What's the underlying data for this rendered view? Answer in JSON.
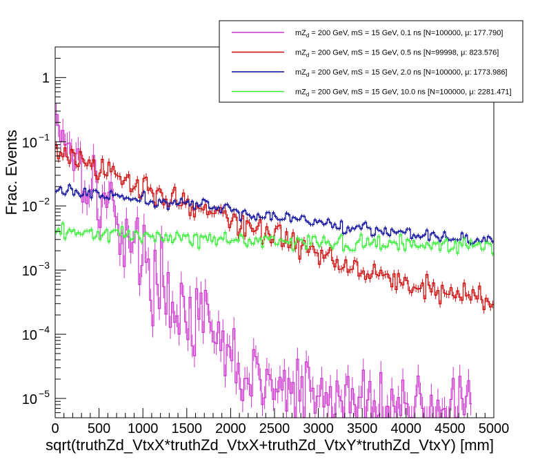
{
  "chart_data": {
    "type": "line",
    "style": "step-histogram",
    "title": "",
    "xlabel": "sqrt(truthZd_VtxX*truthZd_VtxX+truthZd_VtxY*truthZd_VtxY) [mm]",
    "ylabel": "Frac. Events",
    "xlim": [
      0,
      5000
    ],
    "ylim": [
      5e-06,
      3
    ],
    "yscale": "log",
    "x_ticks": [
      0,
      500,
      1000,
      1500,
      2000,
      2500,
      3000,
      3500,
      4000,
      4500,
      5000
    ],
    "x_tick_labels": [
      "0",
      "500",
      "1000",
      "1500",
      "2000",
      "2500",
      "3000",
      "3500",
      "4000",
      "4500",
      "5000"
    ],
    "y_tick_labels": [
      {
        "value": 1,
        "mantissa": "1",
        "exponent": ""
      },
      {
        "value": 0.1,
        "mantissa": "10",
        "exponent": "−1"
      },
      {
        "value": 0.01,
        "mantissa": "10",
        "exponent": "−2"
      },
      {
        "value": 0.001,
        "mantissa": "10",
        "exponent": "−3"
      },
      {
        "value": 0.0001,
        "mantissa": "10",
        "exponent": "−4"
      },
      {
        "value": 1e-05,
        "mantissa": "10",
        "exponent": "−5"
      }
    ],
    "legend_position": "top-right",
    "bin_width": 25,
    "series": [
      {
        "name": "mZd = 200 GeV, mS = 15 GeV, 0.1 ns [N=100000, μ: 177.790]",
        "legend_pre": "mZ",
        "legend_sub": "d",
        "legend_post": " = 200 GeV, mS = 15 GeV, 0.1 ns [N=100000, μ: 177.790]",
        "color": "#cc33cc",
        "anchors": [
          [
            0,
            0.28
          ],
          [
            100,
            0.15
          ],
          [
            250,
            0.06
          ],
          [
            400,
            0.025
          ],
          [
            600,
            0.01
          ],
          [
            800,
            0.004
          ],
          [
            1000,
            0.0015
          ],
          [
            1200,
            0.0006
          ],
          [
            1400,
            0.00028
          ],
          [
            1600,
            0.00016
          ],
          [
            1800,
            9e-05
          ],
          [
            2000,
            4e-05
          ],
          [
            2200,
            2e-05
          ],
          [
            2500,
            1.4e-05
          ],
          [
            3000,
            1e-05
          ],
          [
            3500,
            8e-06
          ],
          [
            4000,
            7e-06
          ],
          [
            4700,
            6e-06
          ]
        ],
        "noise": 0.3,
        "cutoff": 4750
      },
      {
        "name": "mZd = 200 GeV, mS = 15 GeV, 0.5 ns [N=99998, μ: 823.576]",
        "legend_pre": "mZ",
        "legend_sub": "d",
        "legend_post": " = 200 GeV, mS = 15 GeV, 0.5 ns [N=99998, μ: 823.576]",
        "color": "#cc0000",
        "anchors": [
          [
            0,
            0.075
          ],
          [
            500,
            0.035
          ],
          [
            1000,
            0.02
          ],
          [
            1500,
            0.011
          ],
          [
            2000,
            0.006
          ],
          [
            2500,
            0.0035
          ],
          [
            3000,
            0.0018
          ],
          [
            3500,
            0.0011
          ],
          [
            4000,
            0.0006
          ],
          [
            4500,
            0.00045
          ],
          [
            5000,
            0.00032
          ]
        ],
        "noise": 0.1,
        "cutoff": 5000
      },
      {
        "name": "mZd = 200 GeV, mS = 15 GeV, 2.0 ns [N=100000, μ: 1773.986]",
        "legend_pre": "mZ",
        "legend_sub": "d",
        "legend_post": " = 200 GeV, mS = 15 GeV, 2.0 ns [N=100000, μ: 1773.986]",
        "color": "#000099",
        "anchors": [
          [
            0,
            0.018
          ],
          [
            500,
            0.015
          ],
          [
            1000,
            0.012
          ],
          [
            1500,
            0.011
          ],
          [
            2000,
            0.0085
          ],
          [
            2500,
            0.0068
          ],
          [
            3000,
            0.0055
          ],
          [
            3500,
            0.0045
          ],
          [
            4000,
            0.0039
          ],
          [
            4500,
            0.0033
          ],
          [
            5000,
            0.0028
          ]
        ],
        "noise": 0.05,
        "cutoff": 5000
      },
      {
        "name": "mZd = 200 GeV, mS = 15 GeV, 10.0 ns [N=100000, μ: 2281.471]",
        "legend_pre": "mZ",
        "legend_sub": "d",
        "legend_post": " = 200 GeV, mS = 15 GeV, 10.0 ns [N=100000, μ: 2281.471]",
        "color": "#33ee33",
        "anchors": [
          [
            0,
            0.0038
          ],
          [
            1000,
            0.0034
          ],
          [
            2000,
            0.003
          ],
          [
            3000,
            0.0027
          ],
          [
            4000,
            0.0025
          ],
          [
            5000,
            0.0023
          ]
        ],
        "noise": 0.06,
        "cutoff": 5000
      }
    ]
  }
}
